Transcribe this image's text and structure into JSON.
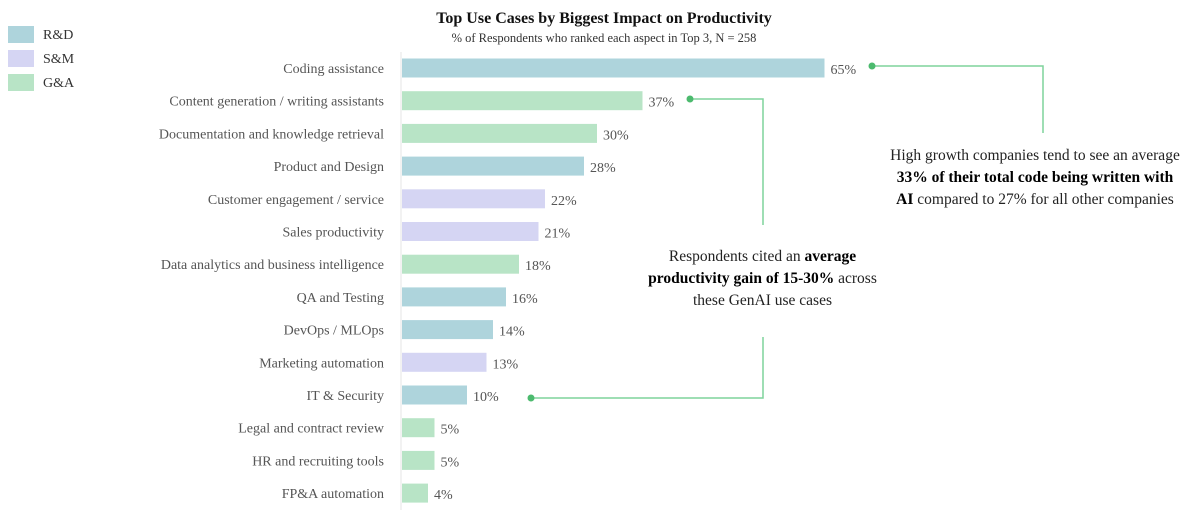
{
  "chart_data": {
    "type": "bar",
    "orientation": "horizontal",
    "title": "Top Use Cases by Biggest Impact on Productivity",
    "subtitle": "% of Respondents who ranked each aspect in Top 3, N = 258",
    "legend": {
      "placement": "top-left",
      "entries": [
        {
          "name": "R&D",
          "color": "#aed4dc"
        },
        {
          "name": "S&M",
          "color": "#d5d5f3"
        },
        {
          "name": "G&A",
          "color": "#b8e4c6"
        }
      ]
    },
    "categories": [
      "Coding assistance",
      "Content generation / writing assistants",
      "Documentation and knowledge retrieval",
      "Product and Design",
      "Customer engagement / service",
      "Sales productivity",
      "Data analytics and business intelligence",
      "QA and Testing",
      "DevOps / MLOps",
      "Marketing automation",
      "IT & Security",
      "Legal and contract review",
      "HR and recruiting tools",
      "FP&A automation"
    ],
    "values": [
      65,
      37,
      30,
      28,
      22,
      21,
      18,
      16,
      14,
      13,
      10,
      5,
      5,
      4
    ],
    "groups": [
      "R&D",
      "G&A",
      "G&A",
      "R&D",
      "S&M",
      "S&M",
      "G&A",
      "R&D",
      "R&D",
      "S&M",
      "R&D",
      "G&A",
      "G&A",
      "G&A"
    ],
    "value_labels": [
      "65%",
      "37%",
      "30%",
      "28%",
      "22%",
      "21%",
      "18%",
      "16%",
      "14%",
      "13%",
      "10%",
      "5%",
      "5%",
      "4%"
    ],
    "xlim": [
      0,
      100
    ],
    "xlabel": "",
    "ylabel": "",
    "grid": false
  },
  "annotations": {
    "connector_color": "#7fd39c",
    "dot_color": "#4cba6e",
    "high_growth": {
      "pre": "High growth companies tend to see an average ",
      "bold": "33% of their total code being written with AI",
      "post": " compared to 27% for all other companies"
    },
    "productivity": {
      "pre": "Respondents cited an ",
      "bold": "average productivity gain of 15-30%",
      "post": " across these GenAI use cases"
    }
  }
}
